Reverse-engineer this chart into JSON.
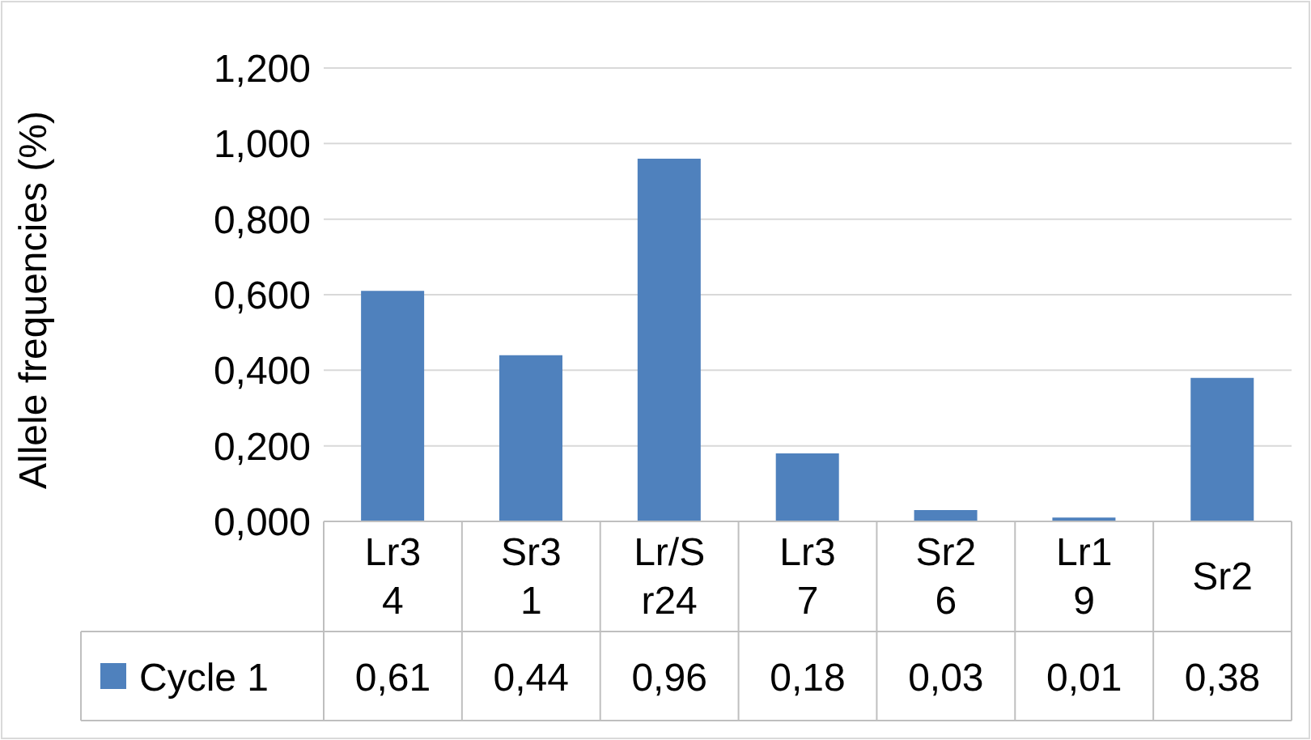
{
  "chart_data": {
    "type": "bar",
    "ylabel": "Allele frequencies (%)",
    "categories": [
      "Lr34",
      "Sr31",
      "Lr/Sr24",
      "Lr37",
      "Sr26",
      "Lr19",
      "Sr2"
    ],
    "series": [
      {
        "name": "Cycle 1",
        "color": "#4f81bd",
        "values": [
          0.61,
          0.44,
          0.96,
          0.18,
          0.03,
          0.01,
          0.38
        ],
        "value_labels": [
          "0,61",
          "0,44",
          "0,96",
          "0,18",
          "0,03",
          "0,01",
          "0,38"
        ]
      }
    ],
    "ylim": [
      0,
      1.2
    ],
    "yticks": [
      {
        "value": 0,
        "label": "0,000"
      },
      {
        "value": 0.2,
        "label": "0,200"
      },
      {
        "value": 0.4,
        "label": "0,400"
      },
      {
        "value": 0.6,
        "label": "0,600"
      },
      {
        "value": 0.8,
        "label": "0,800"
      },
      {
        "value": 1,
        "label": "1,000"
      },
      {
        "value": 1.2,
        "label": "1,200"
      }
    ],
    "grid": "y",
    "legend": "bottom"
  }
}
